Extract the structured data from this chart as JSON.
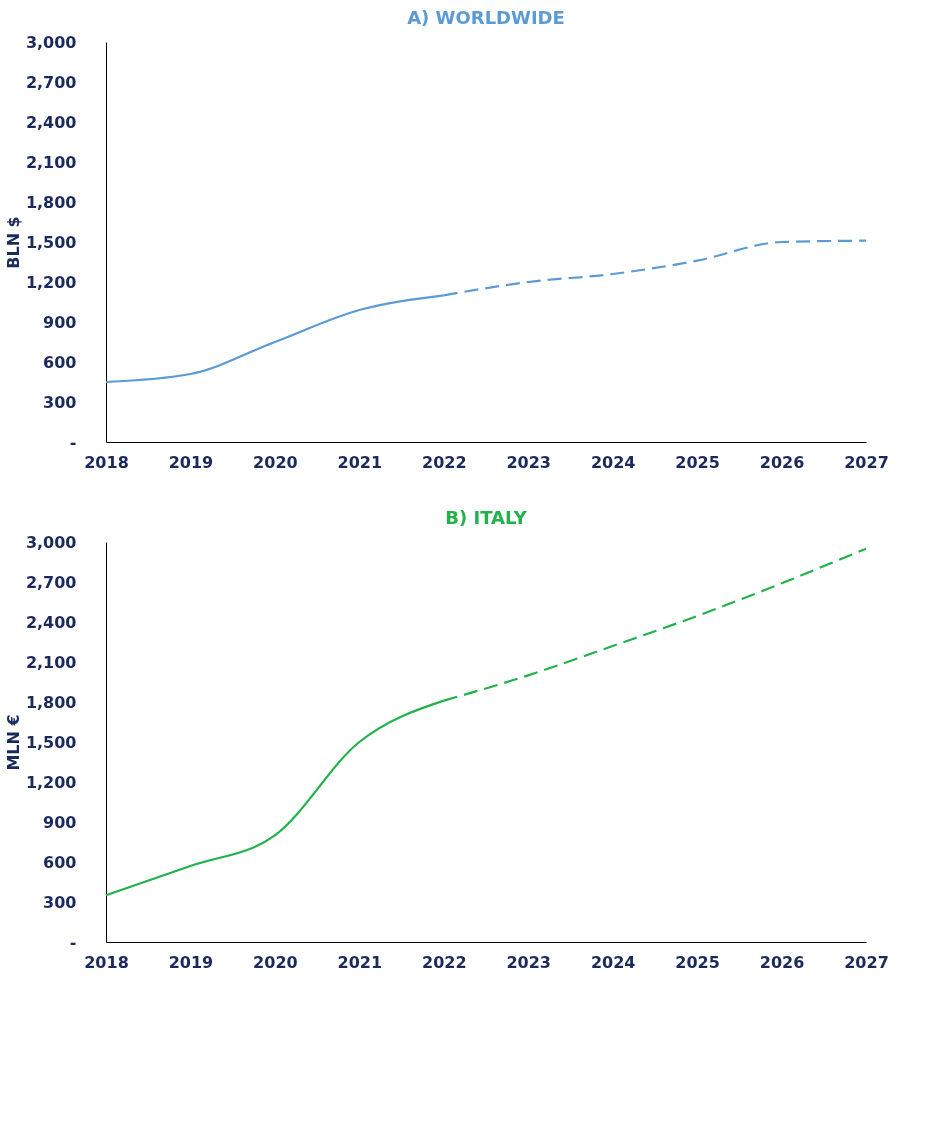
{
  "chart_data": [
    {
      "type": "line",
      "title": "A) WORLDWIDE",
      "ylabel": "BLN $",
      "xlim": [
        2018,
        2027
      ],
      "xticks": [
        2018,
        2019,
        2020,
        2021,
        2022,
        2023,
        2024,
        2025,
        2026,
        2027
      ],
      "ylim": [
        0,
        3000
      ],
      "yticks": [
        {
          "value": 0,
          "label": "-"
        },
        300,
        600,
        900,
        {
          "value": 1200,
          "label": "1,200"
        },
        {
          "value": 1500,
          "label": "1,500"
        },
        {
          "value": 1800,
          "label": "1,800"
        },
        {
          "value": 2100,
          "label": "2,100"
        },
        {
          "value": 2400,
          "label": "2,400"
        },
        {
          "value": 2700,
          "label": "2,700"
        },
        {
          "value": 3000,
          "label": "3,000"
        }
      ],
      "grid": false,
      "marker": "none",
      "series": [
        {
          "color": "#5b9bd5",
          "line_style": "solid",
          "x": [
            2018,
            2019,
            2020,
            2021,
            2022
          ],
          "values": [
            450,
            510,
            750,
            990,
            1100
          ]
        },
        {
          "color": "#5b9bd5",
          "line_style": "dashed",
          "x": [
            2022,
            2023,
            2024,
            2025,
            2026,
            2027
          ],
          "values": [
            1100,
            1200,
            1260,
            1360,
            1500,
            1510
          ]
        }
      ]
    },
    {
      "type": "line",
      "title": "B) ITALY",
      "ylabel": "MLN €",
      "xlim": [
        2018,
        2027
      ],
      "xticks": [
        2018,
        2019,
        2020,
        2021,
        2022,
        2023,
        2024,
        2025,
        2026,
        2027
      ],
      "ylim": [
        0,
        3000
      ],
      "yticks": [
        {
          "value": 0,
          "label": "-"
        },
        300,
        600,
        900,
        {
          "value": 1200,
          "label": "1,200"
        },
        {
          "value": 1500,
          "label": "1,500"
        },
        {
          "value": 1800,
          "label": "1,800"
        },
        {
          "value": 2100,
          "label": "2,100"
        },
        {
          "value": 2400,
          "label": "2,400"
        },
        {
          "value": 2700,
          "label": "2,700"
        },
        {
          "value": 3000,
          "label": "3,000"
        }
      ],
      "grid": false,
      "marker": "none",
      "series": [
        {
          "color": "#22b24c",
          "line_style": "solid",
          "x": [
            2018,
            2019,
            2020,
            2021,
            2022
          ],
          "values": [
            350,
            570,
            800,
            1500,
            1810
          ]
        },
        {
          "color": "#22b24c",
          "line_style": "dashed",
          "x": [
            2022,
            2023,
            2024,
            2025,
            2026,
            2027
          ],
          "values": [
            1810,
            2000,
            2220,
            2445,
            2690,
            2950
          ]
        }
      ]
    }
  ]
}
